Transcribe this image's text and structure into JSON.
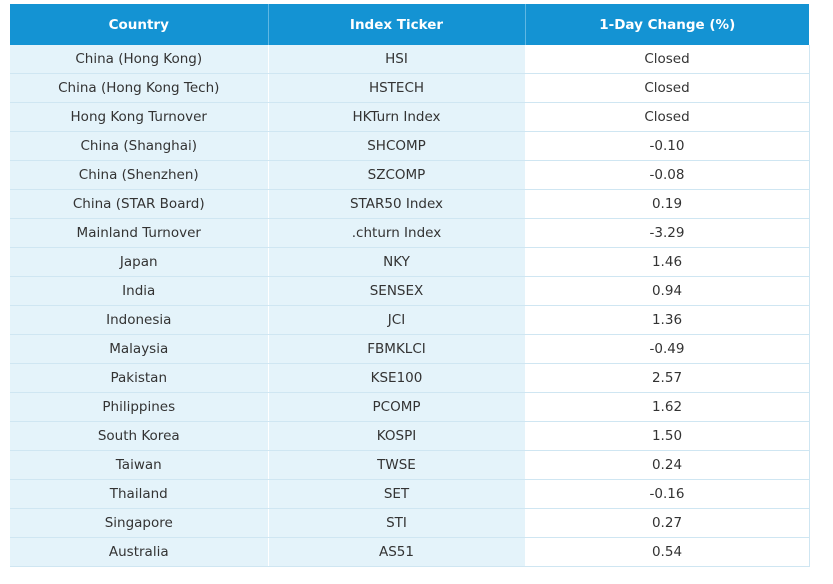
{
  "table": {
    "headers": [
      "Country",
      "Index Ticker",
      "1-Day Change (%)"
    ],
    "rows": [
      {
        "country": "China (Hong Kong)",
        "ticker": "HSI",
        "change": "Closed"
      },
      {
        "country": "China (Hong Kong Tech)",
        "ticker": "HSTECH",
        "change": "Closed"
      },
      {
        "country": "Hong Kong Turnover",
        "ticker": "HKTurn Index",
        "change": "Closed"
      },
      {
        "country": "China (Shanghai)",
        "ticker": "SHCOMP",
        "change": "-0.10"
      },
      {
        "country": "China (Shenzhen)",
        "ticker": "SZCOMP",
        "change": "-0.08"
      },
      {
        "country": "China (STAR Board)",
        "ticker": "STAR50 Index",
        "change": "0.19"
      },
      {
        "country": "Mainland Turnover",
        "ticker": ".chturn Index",
        "change": "-3.29"
      },
      {
        "country": "Japan",
        "ticker": "NKY",
        "change": "1.46"
      },
      {
        "country": "India",
        "ticker": "SENSEX",
        "change": "0.94"
      },
      {
        "country": "Indonesia",
        "ticker": "JCI",
        "change": "1.36"
      },
      {
        "country": "Malaysia",
        "ticker": "FBMKLCI",
        "change": "-0.49"
      },
      {
        "country": "Pakistan",
        "ticker": "KSE100",
        "change": "2.57"
      },
      {
        "country": "Philippines",
        "ticker": "PCOMP",
        "change": "1.62"
      },
      {
        "country": "South Korea",
        "ticker": "KOSPI",
        "change": "1.50"
      },
      {
        "country": "Taiwan",
        "ticker": "TWSE",
        "change": "0.24"
      },
      {
        "country": "Thailand",
        "ticker": "SET",
        "change": "-0.16"
      },
      {
        "country": "Singapore",
        "ticker": "STI",
        "change": "0.27"
      },
      {
        "country": "Australia",
        "ticker": "AS51",
        "change": "0.54"
      }
    ]
  },
  "colors": {
    "header_bg": "#1493d3",
    "shaded_bg": "#e4f3fa",
    "border": "#cfe6f2"
  }
}
